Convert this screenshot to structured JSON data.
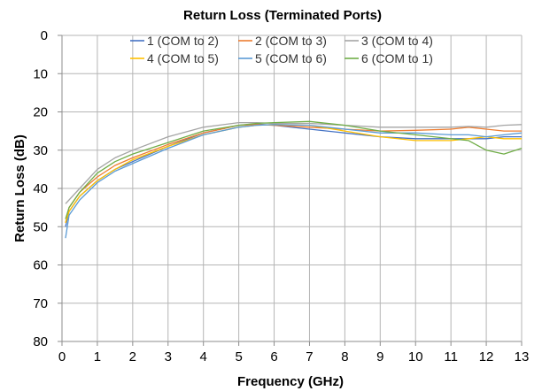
{
  "chart_data": {
    "type": "line",
    "title": "Return Loss (Terminated Ports)",
    "xlabel": "Frequency (GHz)",
    "ylabel": "Return Loss (dB)",
    "xlim": [
      0,
      13
    ],
    "ylim": [
      0,
      80
    ],
    "y_axis_inverted": true,
    "xticks": [
      "0",
      "1",
      "2",
      "3",
      "4",
      "5",
      "6",
      "7",
      "8",
      "9",
      "10",
      "11",
      "12",
      "13"
    ],
    "yticks": [
      "0",
      "10",
      "20",
      "30",
      "40",
      "50",
      "60",
      "70",
      "80"
    ],
    "grid": "vertical and horizontal",
    "legend_position": "top-center",
    "x": [
      0.1,
      0.2,
      0.5,
      1,
      1.5,
      2,
      3,
      4,
      5,
      5.5,
      6,
      7,
      8,
      9,
      10,
      11,
      11.5,
      12,
      12.5,
      13
    ],
    "series": [
      {
        "name": "1 (COM to 2)",
        "color": "#4472c4",
        "values": [
          50,
          46,
          42,
          38,
          35,
          33,
          29,
          25.5,
          23.5,
          23.2,
          23.5,
          24.5,
          25.5,
          26.5,
          27,
          27,
          27,
          27,
          26.5,
          26.5
        ]
      },
      {
        "name": "2 (COM to 3)",
        "color": "#ed7d31",
        "values": [
          49,
          45,
          41,
          37,
          34,
          32,
          28.5,
          25.5,
          23.5,
          23.3,
          23.5,
          24,
          24.5,
          25,
          24.8,
          24.5,
          24,
          24.5,
          25,
          25
        ]
      },
      {
        "name": "3 (COM to 4)",
        "color": "#a5a5a5",
        "values": [
          44,
          43,
          40,
          35,
          32,
          30,
          26.5,
          24,
          22.8,
          22.8,
          23,
          23,
          23.5,
          24,
          24,
          24,
          23.8,
          24,
          23.5,
          23.3
        ]
      },
      {
        "name": "4 (COM to 5)",
        "color": "#ffc000",
        "values": [
          49,
          46,
          42,
          38,
          35,
          32.5,
          29,
          26,
          24,
          23.5,
          23.3,
          23.5,
          25,
          26.5,
          27.5,
          27.5,
          27,
          26.5,
          27,
          27
        ]
      },
      {
        "name": "5 (COM to 6)",
        "color": "#5b9bd5",
        "values": [
          53,
          47,
          43,
          38.5,
          35.5,
          33.5,
          29.5,
          26,
          24,
          23.5,
          23.3,
          23.5,
          24.5,
          25.5,
          25.5,
          26,
          26,
          26.5,
          26,
          25.5
        ]
      },
      {
        "name": "6 (COM to 1)",
        "color": "#70ad47",
        "values": [
          48,
          45,
          41,
          36,
          33,
          31,
          28,
          25,
          23.5,
          23,
          22.8,
          22.5,
          23.5,
          25,
          26,
          27,
          27.5,
          30,
          31,
          29.5
        ]
      }
    ]
  }
}
